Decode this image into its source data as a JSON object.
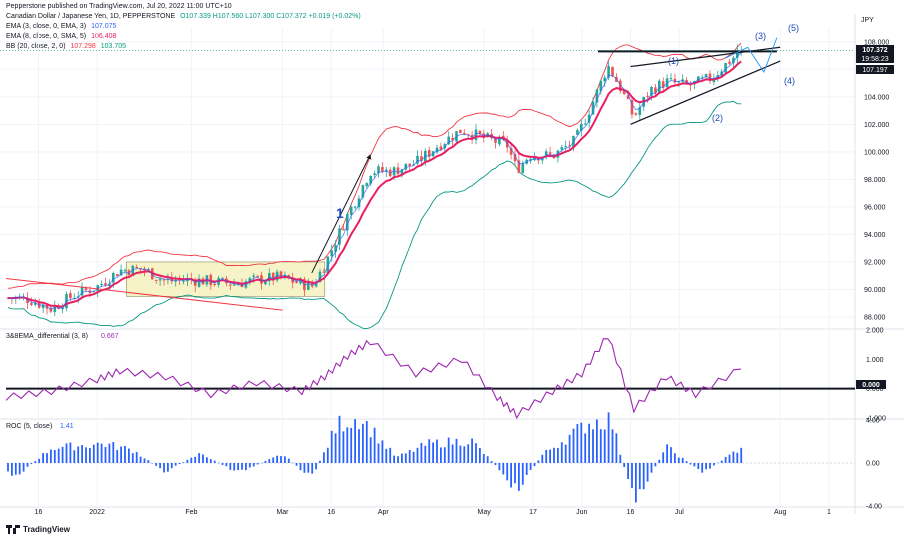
{
  "header": {
    "publisher": "Pepperstone published on TradingView.com, Jul 20, 2022 11:00 UTC+10",
    "symbol": "Canadian Dollar / Japanese Yen, 1D, PEPPERSTONE",
    "ohlc": "O107.339 H107.560 L107.300 C107.372 +0.019 (+0.02%)",
    "ema3_label": "EMA (3, close, 0, EMA, 3)",
    "ema3_value": "107.075",
    "ema8_label": "EMA (8, close, 0, SMA, 5)",
    "ema8_value": "106.408",
    "bb_label": "BB (20, close, 2, 0)",
    "bb_upper_value": "107.298",
    "bb_lower_value": "103.705"
  },
  "currency_label": "JPY",
  "price_badges": {
    "last": "107.372",
    "countdown": "19:58:23",
    "bb_basis": "107.197"
  },
  "oscillator1": {
    "label": "3&8EMA_differential (3, 8)",
    "value": "0.667",
    "zero_badge": "0.000"
  },
  "oscillator2": {
    "label": "ROC (5, close)",
    "value": "1.41"
  },
  "annotations": {
    "wave1": "1",
    "w1": "(1)",
    "w2": "(2)",
    "w3": "(3)",
    "w4": "(4)",
    "w5": "(5)"
  },
  "footer": {
    "brand": "TradingView"
  },
  "colors": {
    "up": "#26a69a",
    "down": "#ef5350",
    "ema3": "#2962ff",
    "ema8": "#e91e63",
    "bb_upper": "#f23645",
    "bb_lower": "#089981",
    "osc": "#9c27b0",
    "roc": "#2962ff",
    "range_box": "#f7f3c8"
  },
  "chart_data": [
    {
      "type": "candlestick",
      "title": "Canadian Dollar / Japanese Yen, 1D, PEPPERSTONE",
      "ylabel": "JPY",
      "ylim": [
        87.2,
        109.0
      ],
      "y_ticks": [
        88.0,
        90.0,
        92.0,
        94.0,
        96.0,
        98.0,
        100.0,
        102.0,
        104.0,
        106.0,
        108.0
      ],
      "x_tick_labels": [
        "16",
        "2022",
        "Feb",
        "Mar",
        "16",
        "Apr",
        "May",
        "17",
        "Jun",
        "16",
        "Jul",
        "Aug",
        "1"
      ],
      "x_tick_dates": [
        "2021-12-16",
        "2022-01-03",
        "2022-02-01",
        "2022-03-01",
        "2022-03-16",
        "2022-04-01",
        "2022-05-02",
        "2022-05-17",
        "2022-06-01",
        "2022-06-16",
        "2022-07-01",
        "2022-08-01",
        "2022-08-16"
      ],
      "close_path": [
        {
          "d": "2021-12-06",
          "c": 89.4
        },
        {
          "d": "2021-12-13",
          "c": 89.3
        },
        {
          "d": "2021-12-20",
          "c": 88.6
        },
        {
          "d": "2021-12-27",
          "c": 89.6
        },
        {
          "d": "2022-01-03",
          "c": 90.2
        },
        {
          "d": "2022-01-10",
          "c": 91.4
        },
        {
          "d": "2022-01-17",
          "c": 91.5
        },
        {
          "d": "2022-01-24",
          "c": 90.6
        },
        {
          "d": "2022-01-31",
          "c": 90.7
        },
        {
          "d": "2022-02-07",
          "c": 90.6
        },
        {
          "d": "2022-02-14",
          "c": 90.4
        },
        {
          "d": "2022-02-21",
          "c": 90.7
        },
        {
          "d": "2022-02-28",
          "c": 90.9
        },
        {
          "d": "2022-03-07",
          "c": 90.4
        },
        {
          "d": "2022-03-10",
          "c": 90.2
        },
        {
          "d": "2022-03-14",
          "c": 91.8
        },
        {
          "d": "2022-03-21",
          "c": 95.4
        },
        {
          "d": "2022-03-28",
          "c": 98.6
        },
        {
          "d": "2022-04-04",
          "c": 98.6
        },
        {
          "d": "2022-04-11",
          "c": 99.2
        },
        {
          "d": "2022-04-18",
          "c": 100.5
        },
        {
          "d": "2022-04-25",
          "c": 101.6
        },
        {
          "d": "2022-05-02",
          "c": 101.0
        },
        {
          "d": "2022-05-09",
          "c": 100.5
        },
        {
          "d": "2022-05-12",
          "c": 98.7
        },
        {
          "d": "2022-05-16",
          "c": 99.8
        },
        {
          "d": "2022-05-23",
          "c": 99.7
        },
        {
          "d": "2022-05-30",
          "c": 100.8
        },
        {
          "d": "2022-06-06",
          "c": 104.5
        },
        {
          "d": "2022-06-09",
          "c": 106.3
        },
        {
          "d": "2022-06-13",
          "c": 104.6
        },
        {
          "d": "2022-06-17",
          "c": 102.5
        },
        {
          "d": "2022-06-22",
          "c": 104.5
        },
        {
          "d": "2022-06-27",
          "c": 105.1
        },
        {
          "d": "2022-07-04",
          "c": 104.8
        },
        {
          "d": "2022-07-11",
          "c": 105.4
        },
        {
          "d": "2022-07-15",
          "c": 106.3
        },
        {
          "d": "2022-07-20",
          "c": 107.37
        }
      ],
      "last_price": 107.372,
      "bb_basis_last": 107.197,
      "ema3_last": 107.075,
      "ema8_last": 106.408,
      "bb_upper_last": 107.298,
      "bb_lower_last": 103.705
    },
    {
      "type": "line",
      "title": "3&8EMA_differential (3, 8)",
      "ylim": [
        -1.0,
        2.0
      ],
      "y_ticks": [
        -1.0,
        0.0,
        1.0,
        2.0
      ],
      "series": [
        {
          "name": "3&8EMA_differential",
          "points": [
            {
              "d": "2021-12-06",
              "v": -0.3
            },
            {
              "d": "2021-12-20",
              "v": -0.1
            },
            {
              "d": "2022-01-03",
              "v": 0.3
            },
            {
              "d": "2022-01-10",
              "v": 0.6
            },
            {
              "d": "2022-01-24",
              "v": 0.4
            },
            {
              "d": "2022-02-07",
              "v": -0.2
            },
            {
              "d": "2022-02-21",
              "v": 0.2
            },
            {
              "d": "2022-03-07",
              "v": -0.1
            },
            {
              "d": "2022-03-14",
              "v": 0.4
            },
            {
              "d": "2022-03-21",
              "v": 1.1
            },
            {
              "d": "2022-03-28",
              "v": 1.6
            },
            {
              "d": "2022-04-11",
              "v": 0.5
            },
            {
              "d": "2022-04-25",
              "v": 1.0
            },
            {
              "d": "2022-05-06",
              "v": -0.3
            },
            {
              "d": "2022-05-12",
              "v": -0.9
            },
            {
              "d": "2022-05-23",
              "v": -0.1
            },
            {
              "d": "2022-06-01",
              "v": 0.5
            },
            {
              "d": "2022-06-09",
              "v": 1.8
            },
            {
              "d": "2022-06-17",
              "v": -0.7
            },
            {
              "d": "2022-06-27",
              "v": 0.4
            },
            {
              "d": "2022-07-06",
              "v": -0.2
            },
            {
              "d": "2022-07-20",
              "v": 0.667
            }
          ]
        }
      ]
    },
    {
      "type": "bar",
      "title": "ROC (5, close)",
      "ylim": [
        -4.0,
        4.0
      ],
      "y_ticks": [
        -4.0,
        0.0,
        4.0
      ],
      "series": [
        {
          "name": "ROC",
          "points": [
            {
              "d": "2021-12-10",
              "v": -1.0
            },
            {
              "d": "2021-12-20",
              "v": 1.4
            },
            {
              "d": "2022-01-05",
              "v": 1.8
            },
            {
              "d": "2022-01-14",
              "v": 1.2
            },
            {
              "d": "2022-01-24",
              "v": -0.8
            },
            {
              "d": "2022-02-04",
              "v": 0.9
            },
            {
              "d": "2022-02-15",
              "v": -0.9
            },
            {
              "d": "2022-03-01",
              "v": 0.8
            },
            {
              "d": "2022-03-10",
              "v": -1.4
            },
            {
              "d": "2022-03-18",
              "v": 3.6
            },
            {
              "d": "2022-03-25",
              "v": 4.2
            },
            {
              "d": "2022-04-05",
              "v": 0.5
            },
            {
              "d": "2022-04-15",
              "v": 1.8
            },
            {
              "d": "2022-04-28",
              "v": 2.1
            },
            {
              "d": "2022-05-09",
              "v": -1.3
            },
            {
              "d": "2022-05-12",
              "v": -2.6
            },
            {
              "d": "2022-05-20",
              "v": 0.8
            },
            {
              "d": "2022-06-03",
              "v": 3.7
            },
            {
              "d": "2022-06-10",
              "v": 4.1
            },
            {
              "d": "2022-06-17",
              "v": -3.7
            },
            {
              "d": "2022-06-27",
              "v": 1.5
            },
            {
              "d": "2022-07-08",
              "v": -0.9
            },
            {
              "d": "2022-07-20",
              "v": 1.41
            }
          ]
        }
      ]
    }
  ]
}
